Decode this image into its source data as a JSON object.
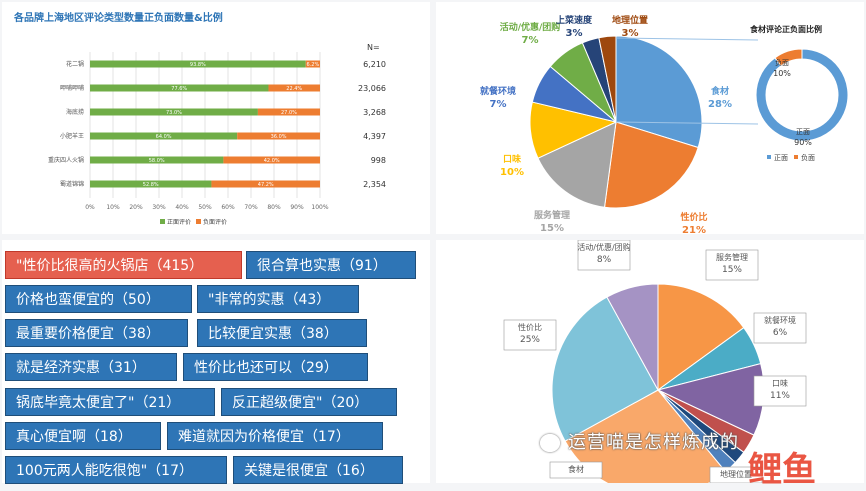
{
  "chart_data": [
    {
      "type": "bar",
      "stacked": true,
      "orientation": "horizontal",
      "title": "各品牌上海地区评论类型数量正负面数量&比例",
      "n_label": "N=",
      "categories": [
        "花二锅",
        "呷哺呷哺",
        "海底捞",
        "小肥羊王",
        "重庆四人火锅",
        "蜀道锦锦"
      ],
      "n_values": [
        "6,210",
        "23,066",
        "3,268",
        "4,397",
        "998",
        "2,354"
      ],
      "series": [
        {
          "name": "正面评价",
          "values": [
            93.8,
            77.6,
            73.0,
            64.0,
            58.0,
            52.8
          ],
          "labels": [
            "93.8%",
            "77.6%",
            "73.0%",
            "64.0%",
            "58.0%",
            "52.8%"
          ],
          "color": "#70ad47"
        },
        {
          "name": "负面评价",
          "values": [
            6.2,
            22.4,
            27.0,
            36.0,
            42.0,
            47.2
          ],
          "labels": [
            "6.2%",
            "22.4%",
            "27.0%",
            "36.0%",
            "42.0%",
            "47.2%"
          ],
          "color": "#ed7d31"
        }
      ],
      "xticks": [
        "0%",
        "10%",
        "20%",
        "30%",
        "40%",
        "50%",
        "60%",
        "70%",
        "80%",
        "90%",
        "100%"
      ],
      "xlim": [
        0,
        100
      ],
      "legend": "bottom"
    },
    {
      "type": "pie",
      "slices": [
        {
          "label": "食材",
          "pct_label": "28%",
          "value": 28,
          "color": "#5b9bd5"
        },
        {
          "label": "性价比",
          "pct_label": "21%",
          "value": 21,
          "color": "#ed7d31"
        },
        {
          "label": "服务管理",
          "pct_label": "15%",
          "value": 15,
          "color": "#a5a5a5"
        },
        {
          "label": "口味",
          "pct_label": "10%",
          "value": 10,
          "color": "#ffc000"
        },
        {
          "label": "就餐环境",
          "pct_label": "7%",
          "value": 7,
          "color": "#4472c4"
        },
        {
          "label": "活动/优惠/团购",
          "pct_label": "7%",
          "value": 7,
          "color": "#70ad47"
        },
        {
          "label": "上菜速度",
          "pct_label": "3%",
          "value": 3,
          "color": "#264478"
        },
        {
          "label": "地理位置",
          "pct_label": "3%",
          "value": 3,
          "color": "#9e480e"
        }
      ]
    },
    {
      "type": "pie",
      "variant": "donut",
      "title": "食材评论正负面比例",
      "slices": [
        {
          "label": "正面",
          "pct_label": "90%",
          "value": 90,
          "color": "#5b9bd5"
        },
        {
          "label": "负面",
          "pct_label": "10%",
          "value": 10,
          "color": "#ed7d31"
        }
      ],
      "legend": "bottom"
    },
    {
      "type": "pie",
      "slices": [
        {
          "label": "服务管理",
          "pct_label": "15%",
          "value": 15,
          "color": "#f79646"
        },
        {
          "label": "就餐环境",
          "pct_label": "6%",
          "value": 6,
          "color": "#4bacc6"
        },
        {
          "label": "口味",
          "pct_label": "11%",
          "value": 11,
          "color": "#8064a2"
        },
        {
          "label": "",
          "pct_label": "",
          "value": 3,
          "color": "#c0504d"
        },
        {
          "label": "",
          "pct_label": "",
          "value": 2,
          "color": "#1f497d"
        },
        {
          "label": "地理位置",
          "pct_label": "",
          "value": 2,
          "color": "#4f81bd"
        },
        {
          "label": "食材",
          "pct_label": "",
          "value": 28,
          "color": "#f9a86a"
        },
        {
          "label": "性价比",
          "pct_label": "25%",
          "value": 25,
          "color": "#7fc3d9"
        },
        {
          "label": "活动/优惠/团购",
          "pct_label": "8%",
          "value": 8,
          "color": "#a593c4"
        }
      ]
    }
  ],
  "keywords": [
    {
      "text": "\"性价比很高的火锅店（415）",
      "highlight": true
    },
    {
      "text": "很合算也实惠（91）"
    },
    {
      "text": "价格也蛮便宜的（50）"
    },
    {
      "text": "\"非常的实惠（43）"
    },
    {
      "text": "最重要价格便宜（38）"
    },
    {
      "text": "比较便宜实惠（38）"
    },
    {
      "text": "就是经济实惠（31）"
    },
    {
      "text": "性价比也还可以（29）"
    },
    {
      "text": "锅底毕竟太便宜了\"（21）"
    },
    {
      "text": "反正超级便宜\"（20）"
    },
    {
      "text": "真心便宜啊（18）"
    },
    {
      "text": "难道就因为价格便宜（17）"
    },
    {
      "text": "100元两人能吃很饱\"（17）"
    },
    {
      "text": "关键是很便宜（16）"
    }
  ],
  "watermark": {
    "text": "运营喵是怎样炼成的",
    "logo": "鲤鱼"
  },
  "colors": {
    "tag_bg": "#2e75b6",
    "tag_highlight": "#e5604f"
  }
}
